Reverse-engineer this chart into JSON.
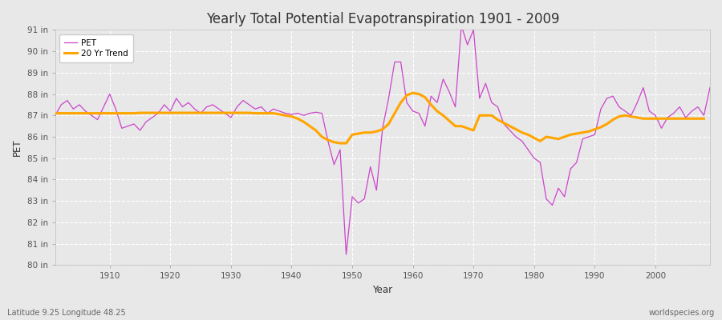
{
  "title": "Yearly Total Potential Evapotranspiration 1901 - 2009",
  "xlabel": "Year",
  "ylabel": "PET",
  "footnote_left": "Latitude 9.25 Longitude 48.25",
  "footnote_right": "worldspecies.org",
  "ylim": [
    80,
    91
  ],
  "ytick_labels": [
    "80 in",
    "81 in",
    "82 in",
    "83 in",
    "84 in",
    "85 in",
    "86 in",
    "87 in",
    "88 in",
    "89 in",
    "90 in",
    "91 in"
  ],
  "pet_color": "#CC44CC",
  "trend_color": "#FFA500",
  "fig_bg_color": "#E8E8E8",
  "plot_bg_color": "#E8E8E8",
  "pet_data": [
    87.0,
    87.5,
    87.7,
    87.3,
    87.5,
    87.2,
    87.0,
    86.8,
    87.4,
    88.0,
    87.3,
    86.4,
    86.5,
    86.6,
    86.3,
    86.7,
    86.9,
    87.1,
    87.5,
    87.2,
    87.8,
    87.4,
    87.6,
    87.3,
    87.1,
    87.4,
    87.5,
    87.3,
    87.1,
    86.9,
    87.4,
    87.7,
    87.5,
    87.3,
    87.4,
    87.1,
    87.3,
    87.2,
    87.1,
    87.05,
    87.1,
    87.0,
    87.1,
    87.15,
    87.1,
    85.8,
    84.7,
    85.4,
    80.5,
    83.2,
    82.9,
    83.1,
    84.6,
    83.5,
    86.4,
    87.8,
    89.5,
    89.5,
    87.6,
    87.2,
    87.1,
    86.5,
    87.9,
    87.6,
    88.7,
    88.1,
    87.4,
    91.2,
    90.3,
    91.0,
    87.8,
    88.5,
    87.6,
    87.4,
    86.6,
    86.3,
    86.0,
    85.8,
    85.4,
    85.0,
    84.8,
    83.1,
    82.8,
    83.6,
    83.2,
    84.5,
    84.8,
    85.9,
    86.0,
    86.1,
    87.3,
    87.8,
    87.9,
    87.4,
    87.2,
    87.0,
    87.6,
    88.3,
    87.2,
    87.0,
    86.4,
    86.9,
    87.1,
    87.4,
    86.9,
    87.2,
    87.4,
    87.0,
    88.3
  ],
  "trend_data": [
    87.1,
    87.1,
    87.1,
    87.1,
    87.1,
    87.1,
    87.1,
    87.1,
    87.1,
    87.1,
    87.1,
    87.1,
    87.1,
    87.1,
    87.12,
    87.12,
    87.12,
    87.12,
    87.12,
    87.12,
    87.12,
    87.12,
    87.12,
    87.12,
    87.12,
    87.12,
    87.12,
    87.12,
    87.12,
    87.12,
    87.12,
    87.12,
    87.12,
    87.1,
    87.1,
    87.1,
    87.1,
    87.05,
    87.0,
    86.95,
    86.85,
    86.7,
    86.5,
    86.3,
    86.0,
    85.85,
    85.75,
    85.7,
    85.7,
    86.1,
    86.15,
    86.2,
    86.2,
    86.25,
    86.35,
    86.6,
    87.1,
    87.6,
    87.95,
    88.05,
    88.0,
    87.85,
    87.5,
    87.2,
    87.0,
    86.75,
    86.5,
    86.5,
    86.4,
    86.3,
    87.0,
    87.0,
    87.0,
    86.8,
    86.65,
    86.5,
    86.35,
    86.2,
    86.1,
    85.95,
    85.8,
    86.0,
    85.95,
    85.9,
    86.0,
    86.1,
    86.15,
    86.2,
    86.25,
    86.35,
    86.45,
    86.6,
    86.8,
    86.95,
    87.0,
    86.95,
    86.9,
    86.85,
    86.85,
    86.85,
    86.85,
    86.85,
    86.85,
    86.85,
    86.85,
    86.85,
    86.85,
    86.85
  ]
}
